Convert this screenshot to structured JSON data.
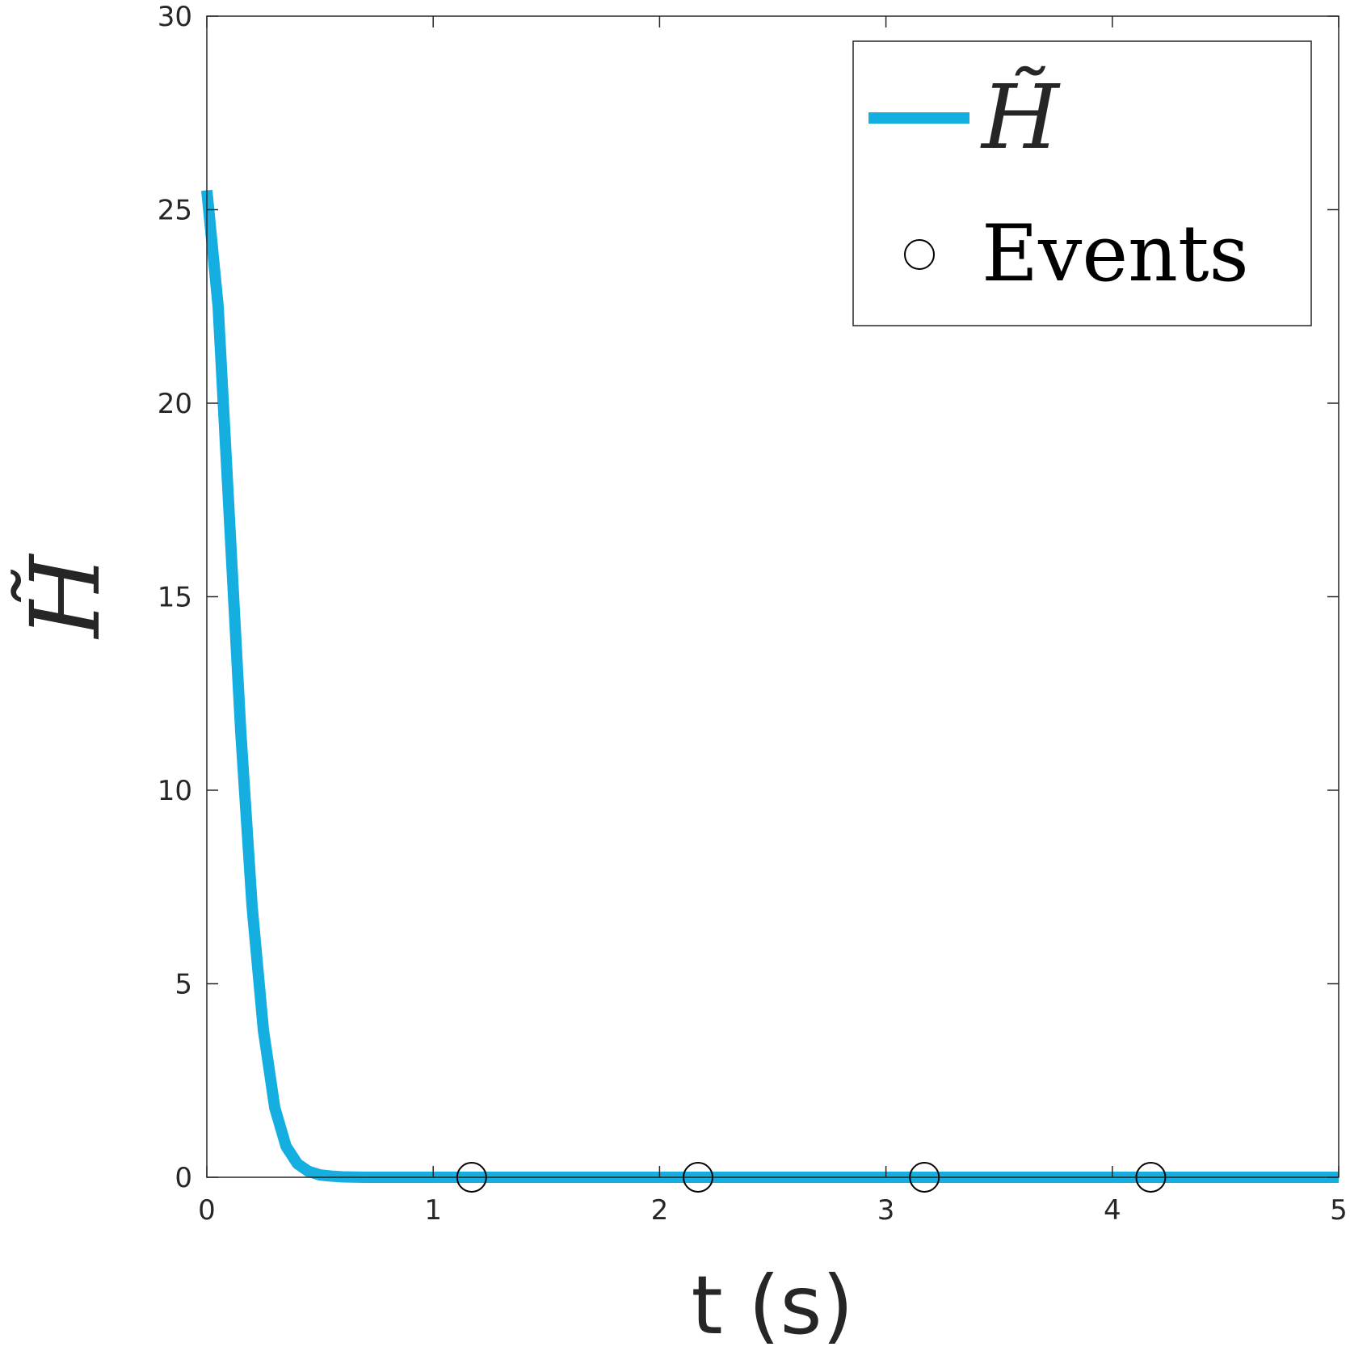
{
  "chart_data": {
    "type": "line",
    "xlabel": "t (s)",
    "ylabel": "H̃",
    "xlim": [
      0,
      5
    ],
    "ylim": [
      0,
      30
    ],
    "xticks": [
      "0",
      "1",
      "2",
      "3",
      "4",
      "5"
    ],
    "yticks": [
      "0",
      "5",
      "10",
      "15",
      "20",
      "25",
      "30"
    ],
    "grid": false,
    "legend": "top-right",
    "series": [
      {
        "name": "H̃",
        "kind": "line",
        "color": "#14AFE0",
        "x": [
          0,
          0.05,
          0.1,
          0.15,
          0.2,
          0.25,
          0.3,
          0.35,
          0.4,
          0.45,
          0.5,
          0.55,
          0.6,
          0.7,
          0.8,
          1.0,
          1.5,
          2.0,
          2.5,
          3.0,
          3.5,
          4.0,
          4.5,
          5.0
        ],
        "y": [
          25.5,
          22.5,
          17.0,
          11.5,
          7.0,
          3.8,
          1.8,
          0.8,
          0.35,
          0.15,
          0.06,
          0.03,
          0.01,
          0,
          0,
          0,
          0,
          0,
          0,
          0,
          0,
          0,
          0,
          0
        ]
      },
      {
        "name": "Events",
        "kind": "marker",
        "marker": "circle",
        "color": "#000000",
        "x": [
          1.17,
          2.17,
          3.17,
          4.17
        ],
        "y": [
          0,
          0,
          0,
          0
        ]
      }
    ]
  }
}
